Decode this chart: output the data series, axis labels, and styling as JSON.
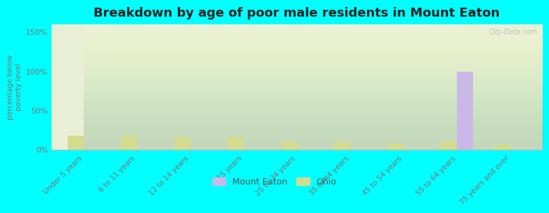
{
  "title": "Breakdown by age of poor male residents in Mount Eaton",
  "categories": [
    "Under 5 years",
    "6 to 11 years",
    "12 to 14 years",
    "15 years",
    "25 to 34 years",
    "35 to 44 years",
    "45 to 54 years",
    "55 to 64 years",
    "75 years and over"
  ],
  "mount_eaton_values": [
    0,
    0,
    0,
    0,
    0,
    0,
    0,
    100,
    0
  ],
  "ohio_values": [
    18,
    18,
    16,
    16,
    10,
    10,
    8,
    11,
    6
  ],
  "mount_eaton_color": "#c9b8e8",
  "ohio_color": "#d4db8e",
  "background_color": "#00ffff",
  "plot_bg_gradient_top": "#f5f5e8",
  "plot_bg_gradient_bottom": "#e8f0d8",
  "ylabel": "percentage below\npoverty level",
  "ylim": [
    0,
    160
  ],
  "yticks": [
    0,
    50,
    100,
    150
  ],
  "ytick_labels": [
    "0%",
    "50%",
    "100%",
    "150%"
  ],
  "bar_width": 0.3,
  "title_fontsize": 13,
  "watermark": "City-Data.com"
}
